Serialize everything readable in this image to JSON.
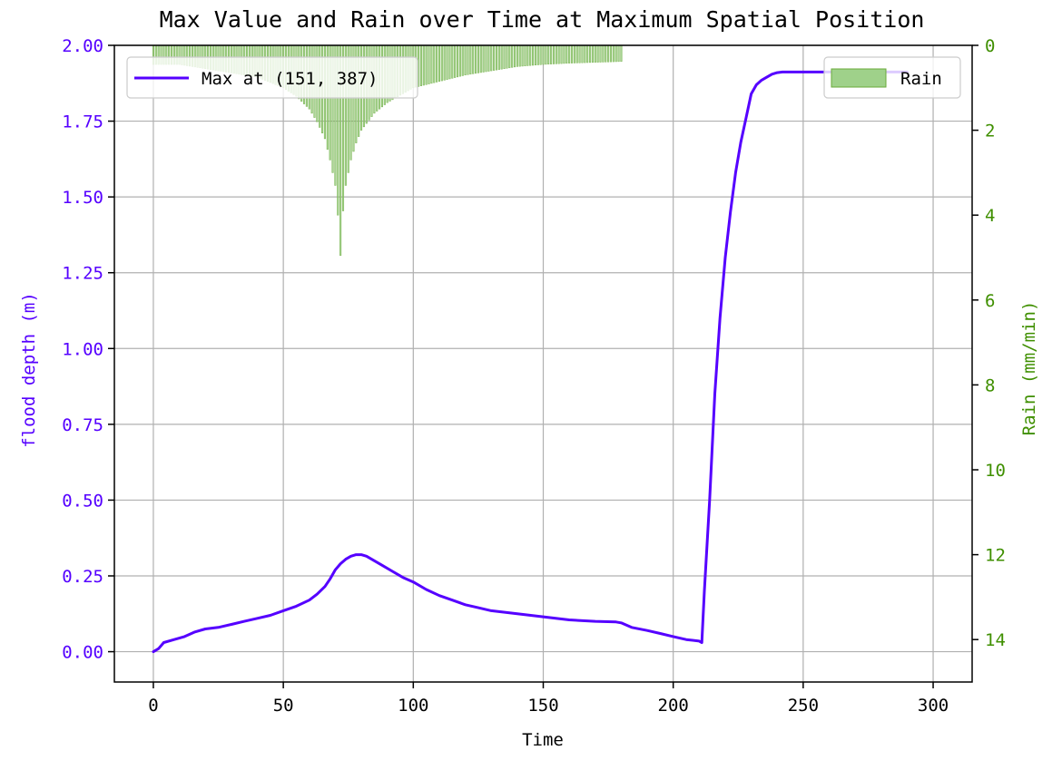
{
  "chart_data": {
    "type": "line+bar",
    "title": "Max Value and Rain over Time at Maximum Spatial Position",
    "xlabel": "Time",
    "ylabel_left": "flood depth (m)",
    "ylabel_right": "Rain (mm/min)",
    "colors": {
      "line": "#5500ff",
      "rain": "#6aaa3a",
      "rain_fill": "#9fd18a",
      "left_axis": "#5500ff",
      "right_axis": "#3f8f00",
      "grid": "#b0b0b0"
    },
    "xlim": [
      -15,
      315
    ],
    "ylim_left": [
      -0.1,
      2.0
    ],
    "ylim_right": [
      15,
      0
    ],
    "right_axis_inverted": true,
    "grid": true,
    "x_ticks": [
      "0",
      "50",
      "100",
      "150",
      "200",
      "250",
      "300"
    ],
    "x_tick_values": [
      0,
      50,
      100,
      150,
      200,
      250,
      300
    ],
    "y_left_ticks": [
      "0.00",
      "0.25",
      "0.50",
      "0.75",
      "1.00",
      "1.25",
      "1.50",
      "1.75",
      "2.00"
    ],
    "y_left_tick_values": [
      0,
      0.25,
      0.5,
      0.75,
      1.0,
      1.25,
      1.5,
      1.75,
      2.0
    ],
    "y_right_ticks": [
      "0",
      "2",
      "4",
      "6",
      "8",
      "10",
      "12",
      "14"
    ],
    "y_right_tick_values": [
      0,
      2,
      4,
      6,
      8,
      10,
      12,
      14
    ],
    "legend_line": {
      "label": "Max at (151, 387)",
      "position": "top-left"
    },
    "legend_rain": {
      "label": "Rain",
      "position": "top-right"
    },
    "series": [
      {
        "name": "Max at (151, 387)",
        "type": "line",
        "axis": "left",
        "x": [
          0,
          2,
          4,
          8,
          12,
          16,
          20,
          25,
          30,
          35,
          40,
          45,
          50,
          55,
          60,
          63,
          66,
          68,
          70,
          72,
          74,
          76,
          78,
          80,
          82,
          85,
          88,
          92,
          96,
          100,
          105,
          110,
          115,
          120,
          125,
          130,
          140,
          150,
          160,
          170,
          178,
          180,
          184,
          190,
          195,
          200,
          205,
          210,
          211,
          212,
          214,
          216,
          218,
          220,
          222,
          224,
          226,
          228,
          230,
          232,
          234,
          236,
          238,
          240,
          242,
          245,
          250,
          260,
          270,
          280,
          290
        ],
        "y": [
          0.0,
          0.01,
          0.03,
          0.04,
          0.05,
          0.065,
          0.075,
          0.08,
          0.09,
          0.1,
          0.11,
          0.12,
          0.135,
          0.15,
          0.17,
          0.19,
          0.215,
          0.24,
          0.27,
          0.29,
          0.305,
          0.315,
          0.32,
          0.32,
          0.315,
          0.3,
          0.285,
          0.265,
          0.245,
          0.23,
          0.205,
          0.185,
          0.17,
          0.155,
          0.145,
          0.135,
          0.125,
          0.115,
          0.105,
          0.1,
          0.098,
          0.095,
          0.08,
          0.07,
          0.06,
          0.05,
          0.04,
          0.035,
          0.03,
          0.2,
          0.5,
          0.85,
          1.1,
          1.3,
          1.45,
          1.58,
          1.68,
          1.76,
          1.84,
          1.87,
          1.885,
          1.895,
          1.905,
          1.91,
          1.912,
          1.912,
          1.912,
          1.912,
          1.912,
          1.912,
          1.912
        ]
      },
      {
        "name": "Rain",
        "type": "bar",
        "axis": "right",
        "x_start": 0,
        "x_end": 180,
        "peak_x": 72,
        "peak_value": 4.95,
        "profile": {
          "x": [
            0,
            10,
            20,
            30,
            40,
            50,
            55,
            60,
            63,
            66,
            68,
            70,
            71,
            72,
            73,
            74,
            76,
            78,
            80,
            85,
            90,
            100,
            110,
            120,
            130,
            140,
            150,
            160,
            170,
            180
          ],
          "values": [
            0.45,
            0.45,
            0.55,
            0.65,
            0.75,
            1.0,
            1.2,
            1.5,
            1.8,
            2.2,
            2.7,
            3.3,
            4.0,
            4.95,
            3.9,
            3.3,
            2.7,
            2.3,
            2.0,
            1.6,
            1.35,
            1.0,
            0.85,
            0.7,
            0.6,
            0.5,
            0.45,
            0.42,
            0.4,
            0.38
          ]
        }
      }
    ]
  }
}
